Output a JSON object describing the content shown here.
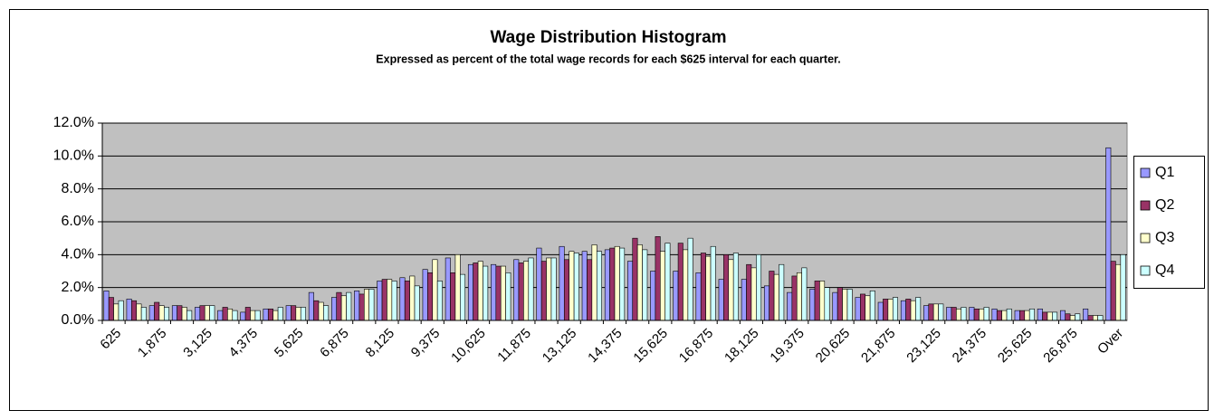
{
  "chart_data": {
    "type": "bar",
    "title": "Wage Distribution Histogram",
    "subtitle": "Expressed as percent of the total wage records for each $625 interval for each quarter.",
    "categories": [
      "625",
      null,
      "1,875",
      null,
      "3,125",
      null,
      "4,375",
      null,
      "5,625",
      null,
      "6,875",
      null,
      "8,125",
      null,
      "9,375",
      null,
      "10,625",
      null,
      "11,875",
      null,
      "13,125",
      null,
      "14,375",
      null,
      "15,625",
      null,
      "16,875",
      null,
      "18,125",
      null,
      "19,375",
      null,
      "20,625",
      null,
      "21,875",
      null,
      "23,125",
      null,
      "24,375",
      null,
      "25,625",
      null,
      "26,875",
      null,
      "Over"
    ],
    "series": [
      {
        "name": "Q1",
        "color": "#9999ff",
        "values": [
          1.8,
          1.3,
          0.9,
          0.9,
          0.8,
          0.6,
          0.5,
          0.7,
          0.9,
          1.7,
          1.4,
          1.8,
          2.4,
          2.6,
          3.1,
          3.8,
          3.4,
          3.4,
          3.7,
          4.4,
          4.5,
          4.2,
          4.3,
          3.6,
          3.0,
          3.0,
          2.9,
          2.5,
          2.5,
          2.1,
          1.7,
          1.9,
          1.7,
          1.4,
          1.1,
          1.2,
          0.9,
          0.8,
          0.8,
          0.7,
          0.6,
          0.7,
          0.6,
          0.7,
          10.5
        ]
      },
      {
        "name": "Q2",
        "color": "#993366",
        "values": [
          1.4,
          1.2,
          1.1,
          0.9,
          0.9,
          0.8,
          0.8,
          0.7,
          0.9,
          1.2,
          1.7,
          1.6,
          2.5,
          2.4,
          2.9,
          2.9,
          3.5,
          3.3,
          3.5,
          3.6,
          3.7,
          3.7,
          4.4,
          5.0,
          5.1,
          4.7,
          4.1,
          4.0,
          3.4,
          3.0,
          2.7,
          2.4,
          2.0,
          1.6,
          1.3,
          1.3,
          1.0,
          0.8,
          0.7,
          0.6,
          0.6,
          0.5,
          0.4,
          0.3,
          3.6
        ]
      },
      {
        "name": "Q3",
        "color": "#ffffcc",
        "values": [
          1.0,
          1.0,
          0.9,
          0.8,
          0.9,
          0.7,
          0.6,
          0.6,
          0.8,
          1.1,
          1.5,
          1.9,
          2.5,
          2.7,
          3.7,
          4.0,
          3.6,
          3.3,
          3.6,
          3.8,
          4.2,
          4.6,
          4.5,
          4.6,
          4.2,
          4.3,
          3.9,
          3.7,
          3.2,
          2.8,
          2.9,
          2.4,
          1.9,
          1.5,
          1.3,
          1.2,
          1.0,
          0.7,
          0.7,
          0.6,
          0.6,
          0.5,
          0.3,
          0.3,
          3.4
        ]
      },
      {
        "name": "Q4",
        "color": "#ccffff",
        "values": [
          1.2,
          0.8,
          0.8,
          0.6,
          0.9,
          0.6,
          0.6,
          0.8,
          0.8,
          0.9,
          1.7,
          1.9,
          2.4,
          2.1,
          2.4,
          2.8,
          3.3,
          2.9,
          3.8,
          3.8,
          4.1,
          4.2,
          4.4,
          4.3,
          4.7,
          5.0,
          4.5,
          4.1,
          4.0,
          3.4,
          3.2,
          2.0,
          1.9,
          1.8,
          1.4,
          1.4,
          1.0,
          0.8,
          0.8,
          0.7,
          0.7,
          0.5,
          0.4,
          0.3,
          4.0
        ]
      }
    ],
    "ylim": [
      0,
      12
    ],
    "yticks": [
      {
        "value": 0,
        "label": "0.0%"
      },
      {
        "value": 2,
        "label": "2.0%"
      },
      {
        "value": 4,
        "label": "4.0%"
      },
      {
        "value": 6,
        "label": "6.0%"
      },
      {
        "value": 8,
        "label": "8.0%"
      },
      {
        "value": 10,
        "label": "10.0%"
      },
      {
        "value": 12,
        "label": "12.0%"
      }
    ],
    "grid": true,
    "legend": "right"
  }
}
